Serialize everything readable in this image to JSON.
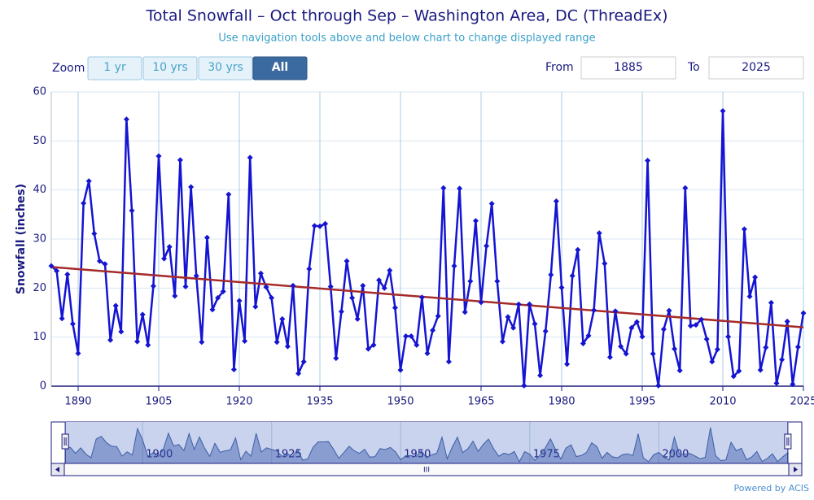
{
  "ui": {
    "zoom_label": "Zoom",
    "buttons": [
      "1 yr",
      "10 yrs",
      "30 yrs",
      "All"
    ],
    "from_label": "From",
    "from_value": "1885",
    "to_label": "To",
    "to_value": "2025",
    "scrollbar_grip": "III",
    "credit": "Powered by ACIS"
  },
  "chart_data": {
    "type": "line",
    "title": "Total Snowfall – Oct through Sep – Washington Area, DC (ThreadEx)",
    "subtitle": "Use navigation tools above and below chart to change displayed range",
    "y_label": "Snowfall (inches)",
    "x": [
      1885,
      1886,
      1887,
      1888,
      1889,
      1890,
      1891,
      1892,
      1893,
      1894,
      1895,
      1896,
      1897,
      1898,
      1899,
      1900,
      1901,
      1902,
      1903,
      1904,
      1905,
      1906,
      1907,
      1908,
      1909,
      1910,
      1911,
      1912,
      1913,
      1914,
      1915,
      1916,
      1917,
      1918,
      1919,
      1920,
      1921,
      1922,
      1923,
      1924,
      1925,
      1926,
      1927,
      1928,
      1929,
      1930,
      1931,
      1932,
      1933,
      1934,
      1935,
      1936,
      1937,
      1938,
      1939,
      1940,
      1941,
      1942,
      1943,
      1944,
      1945,
      1946,
      1947,
      1948,
      1949,
      1950,
      1951,
      1952,
      1953,
      1954,
      1955,
      1956,
      1957,
      1958,
      1959,
      1960,
      1961,
      1962,
      1963,
      1964,
      1965,
      1966,
      1967,
      1968,
      1969,
      1970,
      1971,
      1972,
      1973,
      1974,
      1975,
      1976,
      1977,
      1978,
      1979,
      1980,
      1981,
      1982,
      1983,
      1984,
      1985,
      1986,
      1987,
      1988,
      1989,
      1990,
      1991,
      1992,
      1993,
      1994,
      1995,
      1996,
      1997,
      1998,
      1999,
      2000,
      2001,
      2002,
      2003,
      2004,
      2005,
      2006,
      2007,
      2008,
      2009,
      2010,
      2011,
      2012,
      2013,
      2014,
      2015,
      2016,
      2017,
      2018,
      2019,
      2020,
      2021,
      2022,
      2023,
      2024,
      2025
    ],
    "series": [
      {
        "color": "#1414d2",
        "values": [
          24.5,
          23.5,
          13.8,
          22.8,
          12.7,
          6.7,
          37.3,
          41.8,
          31.1,
          25.5,
          24.9,
          9.4,
          16.4,
          11.1,
          54.4,
          35.8,
          9.1,
          14.6,
          8.4,
          20.4,
          46.9,
          26.0,
          28.4,
          18.4,
          46.1,
          20.3,
          40.6,
          22.5,
          9.0,
          30.3,
          15.6,
          18.0,
          19.3,
          39.1,
          3.4,
          17.4,
          9.2,
          46.6,
          16.2,
          23.0,
          20.2,
          18.0,
          9.0,
          13.7,
          8.1,
          20.5,
          2.6,
          5.0,
          23.9,
          32.7,
          32.6,
          33.1,
          20.3,
          5.7,
          15.2,
          25.5,
          18.0,
          13.7,
          20.5,
          7.6,
          8.4,
          21.6,
          20.0,
          23.6,
          16.0,
          3.3,
          10.2,
          10.2,
          8.4,
          18.1,
          6.7,
          11.4,
          14.3,
          40.4,
          5.0,
          24.5,
          40.3,
          15.1,
          21.4,
          33.7,
          17.1,
          28.6,
          37.2,
          21.4,
          9.1,
          14.1,
          11.9,
          16.7,
          0.1,
          16.7,
          12.7,
          2.2,
          11.2,
          22.7,
          37.7,
          20.1,
          4.5,
          22.5,
          27.8,
          8.7,
          10.3,
          15.5,
          31.2,
          25.0,
          5.9,
          15.3,
          8.1,
          6.6,
          11.9,
          13.1,
          10.1,
          46.0,
          6.6,
          0.1,
          11.6,
          15.4,
          7.6,
          3.2,
          40.4,
          12.3,
          12.5,
          13.6,
          9.6,
          5.0,
          7.5,
          56.1,
          10.1,
          2.0,
          3.1,
          32.0,
          18.3,
          22.2,
          3.3,
          7.9,
          17.0,
          0.6,
          5.4,
          13.2,
          0.4,
          8.0,
          14.9
        ]
      }
    ],
    "trend_line": {
      "x": [
        1885,
        2025
      ],
      "values": [
        24.3,
        12.0
      ],
      "color": "#a52a2a"
    },
    "xlim": [
      1885,
      2025
    ],
    "xticks": [
      1890,
      1905,
      1920,
      1935,
      1950,
      1965,
      1980,
      1995,
      2010,
      2025
    ],
    "ylim": [
      0,
      60
    ],
    "yticks": [
      0,
      10,
      20,
      30,
      40,
      50,
      60
    ],
    "grid": true,
    "navigator": {
      "xlim": [
        1882.3,
        2027.7
      ],
      "xticks": [
        1900,
        1925,
        1950,
        1975,
        2000
      ]
    }
  }
}
